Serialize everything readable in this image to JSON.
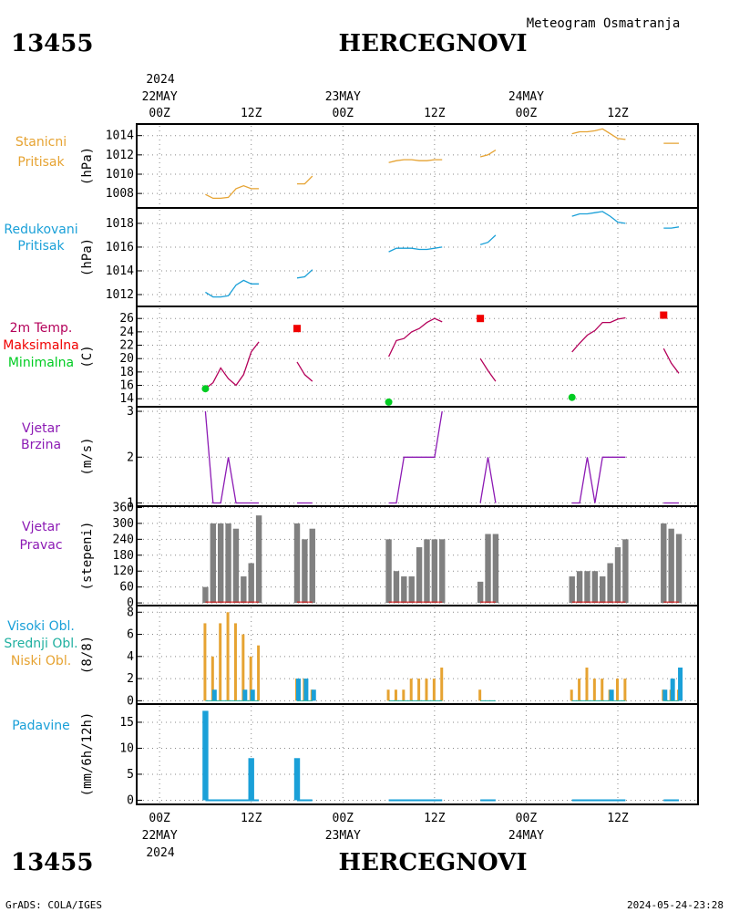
{
  "header": {
    "station_id": "13455",
    "station_name": "HERCEGNOVI",
    "subtitle": "Meteogram Osmatranja"
  },
  "footer": {
    "station_id": "13455",
    "station_name": "HERCEGNOVI",
    "credit": "GrADS: COLA/IGES",
    "timestamp": "2024-05-24-23:28"
  },
  "time_axis": {
    "year": "2024",
    "hours_labels": [
      {
        "t": 0,
        "label": "00Z"
      },
      {
        "t": 12,
        "label": "12Z"
      },
      {
        "t": 24,
        "label": "00Z"
      },
      {
        "t": 36,
        "label": "12Z"
      },
      {
        "t": 48,
        "label": "00Z"
      },
      {
        "t": 60,
        "label": "12Z"
      }
    ],
    "date_labels": [
      {
        "t": 0,
        "label": "22MAY"
      },
      {
        "t": 24,
        "label": "23MAY"
      },
      {
        "t": 48,
        "label": "24MAY"
      }
    ],
    "range_hours": [
      -3,
      70.5
    ],
    "gridlines_hours": [
      0,
      12,
      24,
      36,
      48,
      60
    ]
  },
  "colors": {
    "pressure": "#e6a332",
    "sea_pressure": "#1aa0d8",
    "temp_line": "#b4005a",
    "tmax": "#f00000",
    "tmin": "#00cc22",
    "wind_speed": "#8c1ab4",
    "wind_dir": "#808080",
    "wind_dir_baseline": "#e01010",
    "low_cloud": "#e6a332",
    "mid_cloud": "#20b0a0",
    "high_cloud": "#1aa0d8",
    "precip": "#1aa0d8"
  },
  "chart_data": [
    {
      "type": "line",
      "id": "station-pressure",
      "labels": [
        {
          "text": "Stanicni",
          "color": "pressure"
        },
        {
          "text": "Pritisak",
          "color": "pressure"
        }
      ],
      "ylabel": "(hPa)",
      "ylim": [
        1006.5,
        1015.2
      ],
      "yticks": [
        1008,
        1010,
        1012,
        1014
      ],
      "series_color": "pressure",
      "segments": [
        [
          [
            6,
            1007.9
          ],
          [
            7,
            1007.5
          ],
          [
            8,
            1007.5
          ],
          [
            9,
            1007.6
          ],
          [
            10,
            1008.5
          ],
          [
            11,
            1008.8
          ],
          [
            12,
            1008.5
          ],
          [
            13,
            1008.5
          ]
        ],
        [
          [
            18,
            1009.0
          ],
          [
            19,
            1009.0
          ],
          [
            20,
            1009.8
          ]
        ],
        [
          [
            30,
            1011.2
          ],
          [
            31,
            1011.4
          ],
          [
            32,
            1011.5
          ],
          [
            33,
            1011.5
          ],
          [
            34,
            1011.4
          ],
          [
            35,
            1011.4
          ],
          [
            36,
            1011.5
          ],
          [
            37,
            1011.5
          ]
        ],
        [
          [
            42,
            1011.8
          ],
          [
            43,
            1012.0
          ],
          [
            44,
            1012.5
          ]
        ],
        [
          [
            54,
            1014.2
          ],
          [
            55,
            1014.4
          ],
          [
            56,
            1014.4
          ],
          [
            57,
            1014.5
          ],
          [
            58,
            1014.7
          ],
          [
            59,
            1014.2
          ],
          [
            60,
            1013.7
          ],
          [
            61,
            1013.6
          ]
        ],
        [
          [
            66,
            1013.2
          ],
          [
            67,
            1013.2
          ],
          [
            68,
            1013.2
          ]
        ]
      ]
    },
    {
      "type": "line",
      "id": "reduced-pressure",
      "labels": [
        {
          "text": "Redukovani",
          "color": "sea_pressure"
        },
        {
          "text": "Pritisak",
          "color": "sea_pressure"
        }
      ],
      "ylabel": "(hPa)",
      "ylim": [
        1011.0,
        1019.3
      ],
      "yticks": [
        1012,
        1014,
        1016,
        1018
      ],
      "series_color": "sea_pressure",
      "segments": [
        [
          [
            6,
            1012.2
          ],
          [
            7,
            1011.8
          ],
          [
            8,
            1011.8
          ],
          [
            9,
            1011.9
          ],
          [
            10,
            1012.8
          ],
          [
            11,
            1013.2
          ],
          [
            12,
            1012.9
          ],
          [
            13,
            1012.9
          ]
        ],
        [
          [
            18,
            1013.4
          ],
          [
            19,
            1013.5
          ],
          [
            20,
            1014.1
          ]
        ],
        [
          [
            30,
            1015.6
          ],
          [
            31,
            1015.9
          ],
          [
            32,
            1015.9
          ],
          [
            33,
            1015.9
          ],
          [
            34,
            1015.8
          ],
          [
            35,
            1015.8
          ],
          [
            36,
            1015.9
          ],
          [
            37,
            1016.0
          ]
        ],
        [
          [
            42,
            1016.2
          ],
          [
            43,
            1016.4
          ],
          [
            44,
            1017.0
          ]
        ],
        [
          [
            54,
            1018.6
          ],
          [
            55,
            1018.8
          ],
          [
            56,
            1018.8
          ],
          [
            57,
            1018.9
          ],
          [
            58,
            1019.0
          ],
          [
            59,
            1018.6
          ],
          [
            60,
            1018.1
          ],
          [
            61,
            1018.0
          ]
        ],
        [
          [
            66,
            1017.6
          ],
          [
            67,
            1017.6
          ],
          [
            68,
            1017.7
          ]
        ]
      ]
    },
    {
      "type": "line",
      "id": "temperature",
      "labels": [
        {
          "text": "2m Temp.",
          "color": "temp_line"
        },
        {
          "text": "Maksimalna",
          "color": "tmax"
        },
        {
          "text": "Minimalna",
          "color": "tmin"
        }
      ],
      "ylabel": "(C)",
      "ylim": [
        12.8,
        27.8
      ],
      "yticks": [
        14,
        16,
        18,
        20,
        22,
        24,
        26
      ],
      "series_color": "temp_line",
      "segments": [
        [
          [
            6,
            15.5
          ],
          [
            7,
            16.4
          ],
          [
            8,
            18.6
          ],
          [
            9,
            17.0
          ],
          [
            10,
            16.0
          ],
          [
            11,
            17.6
          ],
          [
            12,
            21.0
          ],
          [
            13,
            22.5
          ]
        ],
        [
          [
            18,
            19.5
          ],
          [
            19,
            17.6
          ],
          [
            20,
            16.6
          ]
        ],
        [
          [
            30,
            20.3
          ],
          [
            31,
            22.7
          ],
          [
            32,
            23.0
          ],
          [
            33,
            24.0
          ],
          [
            34,
            24.5
          ],
          [
            35,
            25.4
          ],
          [
            36,
            26.0
          ],
          [
            37,
            25.5
          ]
        ],
        [
          [
            42,
            20.0
          ],
          [
            43,
            18.2
          ],
          [
            44,
            16.6
          ]
        ],
        [
          [
            54,
            21.0
          ],
          [
            55,
            22.3
          ],
          [
            56,
            23.5
          ],
          [
            57,
            24.2
          ],
          [
            58,
            25.4
          ],
          [
            59,
            25.4
          ],
          [
            60,
            25.9
          ],
          [
            61,
            26.1
          ]
        ],
        [
          [
            66,
            21.5
          ],
          [
            67,
            19.3
          ],
          [
            68,
            17.8
          ]
        ]
      ],
      "tmax": [
        [
          18,
          24.5
        ],
        [
          42,
          26.0
        ],
        [
          66,
          26.5
        ]
      ],
      "tmin": [
        [
          6,
          15.5
        ],
        [
          30,
          13.5
        ],
        [
          54,
          14.2
        ]
      ]
    },
    {
      "type": "line",
      "id": "wind-speed",
      "labels": [
        {
          "text": "Vjetar",
          "color": "wind_speed"
        },
        {
          "text": "Brzina",
          "color": "wind_speed"
        }
      ],
      "ylabel": "(m/s)",
      "ylim": [
        0.93,
        3.1
      ],
      "yticks": [
        1,
        2,
        3
      ],
      "series_color": "wind_speed",
      "segments": [
        [
          [
            6,
            3
          ],
          [
            7,
            1
          ],
          [
            8,
            1
          ],
          [
            9,
            2
          ],
          [
            10,
            1
          ],
          [
            11,
            1
          ],
          [
            12,
            1
          ],
          [
            13,
            1
          ]
        ],
        [
          [
            18,
            1
          ],
          [
            19,
            1
          ],
          [
            20,
            1
          ]
        ],
        [
          [
            30,
            1
          ],
          [
            31,
            1
          ],
          [
            32,
            2
          ],
          [
            33,
            2
          ],
          [
            34,
            2
          ],
          [
            35,
            2
          ],
          [
            36,
            2
          ],
          [
            37,
            3
          ]
        ],
        [
          [
            42,
            1
          ],
          [
            43,
            2
          ],
          [
            44,
            1
          ]
        ],
        [
          [
            54,
            1
          ],
          [
            55,
            1
          ],
          [
            56,
            2
          ],
          [
            57,
            1
          ],
          [
            58,
            2
          ],
          [
            59,
            2
          ],
          [
            60,
            2
          ],
          [
            61,
            2
          ]
        ],
        [
          [
            66,
            1
          ],
          [
            67,
            1
          ],
          [
            68,
            1
          ]
        ]
      ]
    },
    {
      "type": "bar",
      "id": "wind-direction",
      "labels": [
        {
          "text": "Vjetar",
          "color": "wind_speed"
        },
        {
          "text": "Pravac",
          "color": "wind_speed"
        }
      ],
      "ylabel": "(stepeni)",
      "ylim": [
        -10,
        365
      ],
      "yticks": [
        0,
        60,
        120,
        180,
        240,
        300,
        360
      ],
      "ytick_labels": [
        "0",
        "60",
        "120",
        "180",
        "240",
        "300",
        "360"
      ],
      "bar_color": "wind_dir",
      "bars": [
        [
          6,
          60
        ],
        [
          7,
          300
        ],
        [
          8,
          300
        ],
        [
          9,
          300
        ],
        [
          10,
          280
        ],
        [
          11,
          100
        ],
        [
          12,
          150
        ],
        [
          13,
          330
        ],
        [
          18,
          300
        ],
        [
          19,
          240
        ],
        [
          20,
          280
        ],
        [
          30,
          240
        ],
        [
          31,
          120
        ],
        [
          32,
          100
        ],
        [
          33,
          100
        ],
        [
          34,
          210
        ],
        [
          35,
          240
        ],
        [
          36,
          240
        ],
        [
          37,
          240
        ],
        [
          42,
          80
        ],
        [
          43,
          260
        ],
        [
          44,
          260
        ],
        [
          54,
          100
        ],
        [
          55,
          120
        ],
        [
          56,
          120
        ],
        [
          57,
          120
        ],
        [
          58,
          100
        ],
        [
          59,
          150
        ],
        [
          60,
          210
        ],
        [
          61,
          240
        ],
        [
          66,
          300
        ],
        [
          67,
          280
        ],
        [
          68,
          260
        ]
      ]
    },
    {
      "type": "bar",
      "id": "cloud-cover",
      "labels": [
        {
          "text": "Visoki Obl.",
          "color": "high_cloud"
        },
        {
          "text": "Srednji Obl.",
          "color": "mid_cloud"
        },
        {
          "text": "Niski Obl.",
          "color": "low_cloud"
        }
      ],
      "ylabel": "(8/8)",
      "ylim": [
        -0.3,
        8.6
      ],
      "yticks": [
        0,
        2,
        4,
        6,
        8
      ],
      "ytick_labels": [
        "0",
        "2",
        "4",
        "6",
        "8"
      ],
      "low": [
        [
          6,
          7
        ],
        [
          7,
          4
        ],
        [
          8,
          7
        ],
        [
          9,
          8
        ],
        [
          10,
          7
        ],
        [
          11,
          6
        ],
        [
          12,
          4
        ],
        [
          13,
          5
        ],
        [
          18,
          2
        ],
        [
          19,
          2
        ],
        [
          20,
          1
        ],
        [
          30,
          1
        ],
        [
          31,
          1
        ],
        [
          32,
          1
        ],
        [
          33,
          2
        ],
        [
          34,
          2
        ],
        [
          35,
          2
        ],
        [
          36,
          2
        ],
        [
          37,
          3
        ],
        [
          42,
          1
        ],
        [
          43,
          0
        ],
        [
          44,
          0
        ],
        [
          54,
          1
        ],
        [
          55,
          2
        ],
        [
          56,
          3
        ],
        [
          57,
          2
        ],
        [
          58,
          2
        ],
        [
          59,
          1
        ],
        [
          60,
          2
        ],
        [
          61,
          2
        ],
        [
          66,
          1
        ],
        [
          67,
          1
        ],
        [
          68,
          1
        ]
      ],
      "high": [
        [
          7,
          1
        ],
        [
          11,
          1
        ],
        [
          12,
          1
        ],
        [
          18,
          2
        ],
        [
          19,
          2
        ],
        [
          20,
          1
        ],
        [
          59,
          1
        ],
        [
          66,
          1
        ],
        [
          67,
          2
        ],
        [
          68,
          3
        ]
      ]
    },
    {
      "type": "bar",
      "id": "precipitation",
      "labels": [
        {
          "text": "Padavine",
          "color": "precip"
        }
      ],
      "ylabel": "(mm/6h/12h)",
      "ylim": [
        -0.8,
        18.5
      ],
      "yticks": [
        0,
        5,
        10,
        15
      ],
      "ytick_labels": [
        "0",
        "5",
        "10",
        "15"
      ],
      "bar_color": "precip",
      "bars": [
        [
          6,
          17.2
        ],
        [
          12,
          8.1
        ],
        [
          18,
          8.1
        ]
      ],
      "trace_color": "precip",
      "trace": [
        [
          6,
          13
        ],
        [
          18,
          20
        ],
        [
          30,
          37
        ],
        [
          42,
          44
        ],
        [
          54,
          61
        ],
        [
          66,
          68
        ]
      ]
    }
  ]
}
